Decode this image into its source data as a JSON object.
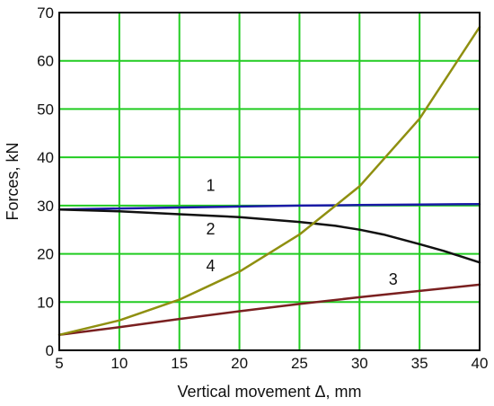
{
  "chart_data": {
    "type": "line",
    "title": "",
    "xlabel": "Vertical movement Δ, mm",
    "ylabel": "Forces, kN",
    "xlim": [
      5,
      40
    ],
    "ylim": [
      0,
      70
    ],
    "x_ticks": [
      5,
      10,
      15,
      20,
      25,
      30,
      35,
      40
    ],
    "y_ticks": [
      0,
      10,
      20,
      30,
      40,
      50,
      60,
      70
    ],
    "grid": true,
    "grid_color": "#22cc22",
    "series": [
      {
        "name": "1",
        "color": "#1a1aa6",
        "x": [
          5,
          10,
          15,
          20,
          25,
          30,
          35,
          40
        ],
        "y": [
          29.2,
          29.4,
          29.6,
          29.8,
          30.0,
          30.1,
          30.2,
          30.3
        ]
      },
      {
        "name": "2",
        "color": "#111111",
        "x": [
          5,
          10,
          15,
          20,
          25,
          28,
          30,
          32,
          35,
          37,
          40
        ],
        "y": [
          29.2,
          28.8,
          28.2,
          27.6,
          26.6,
          25.8,
          25.0,
          24.0,
          22.0,
          20.6,
          18.2
        ]
      },
      {
        "name": "3",
        "color": "#7a2020",
        "x": [
          5,
          10,
          15,
          20,
          25,
          30,
          35,
          40
        ],
        "y": [
          3.2,
          4.8,
          6.5,
          8.1,
          9.6,
          11.0,
          12.3,
          13.6
        ]
      },
      {
        "name": "4",
        "color": "#8f8f10",
        "x": [
          5,
          10,
          15,
          20,
          25,
          30,
          35,
          40
        ],
        "y": [
          3.2,
          6.2,
          10.5,
          16.3,
          24.0,
          34.0,
          48.0,
          67.0
        ]
      }
    ],
    "curve_labels": [
      {
        "text": "1",
        "x": 17.6,
        "y": 33.0
      },
      {
        "text": "2",
        "x": 17.6,
        "y": 24.0
      },
      {
        "text": "3",
        "x": 32.8,
        "y": 13.6
      },
      {
        "text": "4",
        "x": 17.6,
        "y": 16.4
      }
    ]
  }
}
